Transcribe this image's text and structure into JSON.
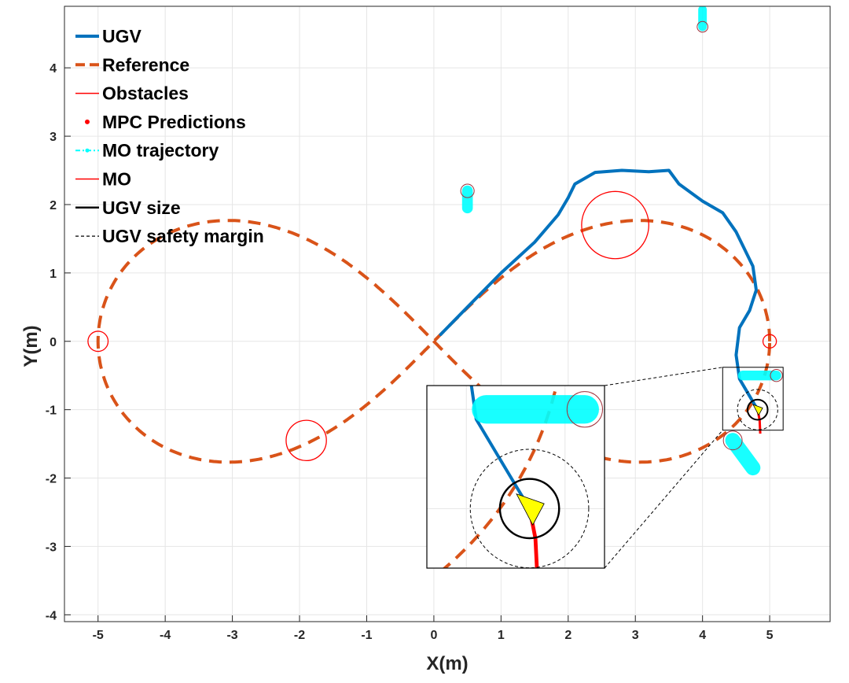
{
  "chart_data": {
    "type": "line",
    "xlabel": "X(m)",
    "ylabel": "Y(m)",
    "xlim": [
      -5.5,
      5.9
    ],
    "ylim": [
      -4.1,
      4.9
    ],
    "xticks": [
      -5,
      -4,
      -3,
      -2,
      -1,
      0,
      1,
      2,
      3,
      4,
      5
    ],
    "yticks": [
      -4,
      -3,
      -2,
      -1,
      0,
      1,
      2,
      3,
      4
    ],
    "grid": true,
    "legend_position": "top-left",
    "legend": [
      {
        "label": "UGV",
        "style": "solid",
        "color": "#0072BD"
      },
      {
        "label": "Reference",
        "style": "dashed",
        "color": "#D95319"
      },
      {
        "label": "Obstacles",
        "style": "solid",
        "color": "#FF0000"
      },
      {
        "label": "MPC Predictions",
        "style": "dot",
        "color": "#FF0000"
      },
      {
        "label": "MO trajectory",
        "style": "dash-dot",
        "color": "#00FFFF"
      },
      {
        "label": "MO",
        "style": "solid",
        "color": "#FF0000"
      },
      {
        "label": "UGV size",
        "style": "solid",
        "color": "#000000"
      },
      {
        "label": "UGV safety margin",
        "style": "dashed",
        "color": "#000000"
      }
    ],
    "series": [
      {
        "name": "UGV",
        "color": "#0072BD",
        "points": [
          [
            0.1,
            0.1
          ],
          [
            0.5,
            0.5
          ],
          [
            1.0,
            1.0
          ],
          [
            1.5,
            1.45
          ],
          [
            1.85,
            1.85
          ],
          [
            2.0,
            2.1
          ],
          [
            2.1,
            2.3
          ],
          [
            2.4,
            2.47
          ],
          [
            2.8,
            2.5
          ],
          [
            3.2,
            2.48
          ],
          [
            3.5,
            2.5
          ],
          [
            3.65,
            2.3
          ],
          [
            4.0,
            2.05
          ],
          [
            4.3,
            1.88
          ],
          [
            4.5,
            1.6
          ],
          [
            4.75,
            1.1
          ],
          [
            4.8,
            0.75
          ],
          [
            4.7,
            0.45
          ],
          [
            4.55,
            0.2
          ],
          [
            4.5,
            -0.2
          ],
          [
            4.55,
            -0.55
          ],
          [
            4.7,
            -0.8
          ],
          [
            4.82,
            -1.0
          ]
        ]
      },
      {
        "name": "Reference",
        "color": "#D95319",
        "type": "lemniscate",
        "a": 5
      }
    ],
    "obstacles": [
      {
        "x": -5.0,
        "y": 0.0,
        "r": 0.15
      },
      {
        "x": 2.7,
        "y": 1.7,
        "r": 0.5
      },
      {
        "x": -1.9,
        "y": -1.45,
        "r": 0.3
      },
      {
        "x": 5.0,
        "y": 0.0,
        "r": 0.1
      }
    ],
    "moving_obstacles": [
      {
        "x": 4.0,
        "y": 4.6,
        "r": 0.08,
        "trail": [
          [
            4.0,
            4.6
          ],
          [
            4.0,
            4.85
          ]
        ]
      },
      {
        "x": 0.5,
        "y": 2.2,
        "r": 0.1,
        "trail": [
          [
            0.5,
            2.2
          ],
          [
            0.5,
            1.95
          ]
        ]
      },
      {
        "x": 5.1,
        "y": -0.5,
        "r": 0.09,
        "trail": [
          [
            5.1,
            -0.5
          ],
          [
            4.6,
            -0.5
          ]
        ]
      },
      {
        "x": 4.45,
        "y": -1.45,
        "r": 0.14,
        "trail": [
          [
            4.45,
            -1.45
          ],
          [
            4.75,
            -1.85
          ]
        ]
      }
    ],
    "ugv": {
      "x": 4.82,
      "y": -1.0,
      "size_r": 0.15,
      "safety_r": 0.3
    },
    "mpc_predictions": [
      [
        4.82,
        -1.0
      ],
      [
        4.85,
        -1.15
      ],
      [
        4.86,
        -1.35
      ]
    ],
    "inset": {
      "xlim": [
        4.3,
        5.2
      ],
      "ylim": [
        -1.3,
        -0.38
      ]
    }
  }
}
